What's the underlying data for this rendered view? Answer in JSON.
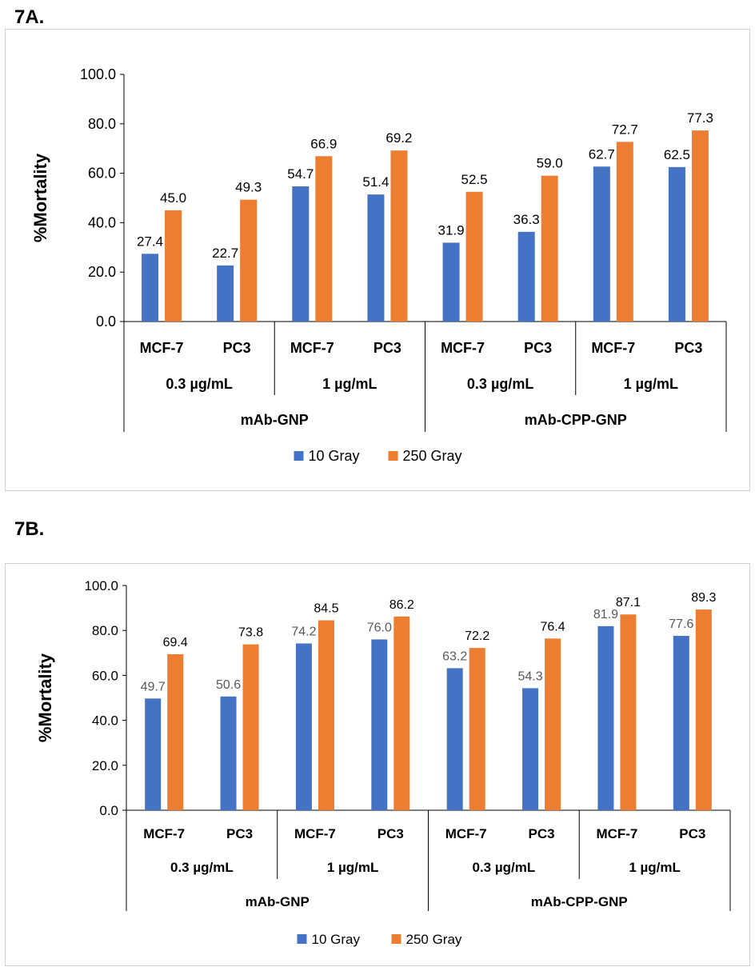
{
  "colors": {
    "series1": "#4472C4",
    "series2": "#ED7D31",
    "axis": "#000000",
    "label_dark": "#000000",
    "label_gray": "#595959"
  },
  "chart_data": [
    {
      "panel_label": "7A.",
      "type": "bar",
      "ylabel": "%Mortality",
      "ylim": [
        0,
        100
      ],
      "yticks": [
        "0.0",
        "20.0",
        "40.0",
        "60.0",
        "80.0",
        "100.0"
      ],
      "grid": false,
      "legend_position": "bottom",
      "categories": [
        {
          "cell": "MCF-7",
          "conc": "0.3 µg/mL",
          "group": "mAb-GNP"
        },
        {
          "cell": "PC3",
          "conc": "0.3 µg/mL",
          "group": "mAb-GNP"
        },
        {
          "cell": "MCF-7",
          "conc": "1 µg/mL",
          "group": "mAb-GNP"
        },
        {
          "cell": "PC3",
          "conc": "1 µg/mL",
          "group": "mAb-GNP"
        },
        {
          "cell": "MCF-7",
          "conc": "0.3 µg/mL",
          "group": "mAb-CPP-GNP"
        },
        {
          "cell": "PC3",
          "conc": "0.3 µg/mL",
          "group": "mAb-CPP-GNP"
        },
        {
          "cell": "MCF-7",
          "conc": "1 µg/mL",
          "group": "mAb-CPP-GNP"
        },
        {
          "cell": "PC3",
          "conc": "1 µg/mL",
          "group": "mAb-CPP-GNP"
        }
      ],
      "conc_labels": [
        "0.3 µg/mL",
        "1 µg/mL",
        "0.3 µg/mL",
        "1 µg/mL"
      ],
      "group_labels": [
        "mAb-GNP",
        "mAb-CPP-GNP"
      ],
      "series": [
        {
          "name": "10 Gray",
          "values": [
            27.4,
            22.7,
            54.7,
            51.4,
            31.9,
            36.3,
            62.7,
            62.5
          ],
          "labels": [
            "27.4",
            "22.7",
            "54.7",
            "51.4",
            "31.9",
            "36.3",
            "62.7",
            "62.5"
          ]
        },
        {
          "name": "250 Gray",
          "values": [
            45.0,
            49.3,
            66.9,
            69.2,
            52.5,
            59.0,
            72.7,
            77.3
          ],
          "labels": [
            "45.0",
            "49.3",
            "66.9",
            "69.2",
            "52.5",
            "59.0",
            "72.7",
            "77.3"
          ]
        }
      ]
    },
    {
      "panel_label": "7B.",
      "type": "bar",
      "ylabel": "%Mortality",
      "ylim": [
        0,
        100
      ],
      "yticks": [
        "0.0",
        "20.0",
        "40.0",
        "60.0",
        "80.0",
        "100.0"
      ],
      "grid": false,
      "legend_position": "bottom",
      "categories": [
        {
          "cell": "MCF-7",
          "conc": "0.3 µg/mL",
          "group": "mAb-GNP"
        },
        {
          "cell": "PC3",
          "conc": "0.3 µg/mL",
          "group": "mAb-GNP"
        },
        {
          "cell": "MCF-7",
          "conc": "1 µg/mL",
          "group": "mAb-GNP"
        },
        {
          "cell": "PC3",
          "conc": "1 µg/mL",
          "group": "mAb-GNP"
        },
        {
          "cell": "MCF-7",
          "conc": "0.3 µg/mL",
          "group": "mAb-CPP-GNP"
        },
        {
          "cell": "PC3",
          "conc": "0.3 µg/mL",
          "group": "mAb-CPP-GNP"
        },
        {
          "cell": "MCF-7",
          "conc": "1 µg/mL",
          "group": "mAb-CPP-GNP"
        },
        {
          "cell": "PC3",
          "conc": "1 µg/mL",
          "group": "mAb-CPP-GNP"
        }
      ],
      "conc_labels": [
        "0.3 µg/mL",
        "1 µg/mL",
        "0.3 µg/mL",
        "1 µg/mL"
      ],
      "group_labels": [
        "mAb-GNP",
        "mAb-CPP-GNP"
      ],
      "series": [
        {
          "name": "10 Gray",
          "values": [
            49.7,
            50.6,
            74.2,
            76.0,
            63.2,
            54.3,
            81.9,
            77.6
          ],
          "labels": [
            "49.7",
            "50.6",
            "74.2",
            "76.0",
            "63.2",
            "54.3",
            "81.9",
            "77.6"
          ]
        },
        {
          "name": "250 Gray",
          "values": [
            69.4,
            73.8,
            84.5,
            86.2,
            72.2,
            76.4,
            87.1,
            89.3
          ],
          "labels": [
            "69.4",
            "73.8",
            "84.5",
            "86.2",
            "72.2",
            "76.4",
            "87.1",
            "89.3"
          ]
        }
      ]
    }
  ]
}
